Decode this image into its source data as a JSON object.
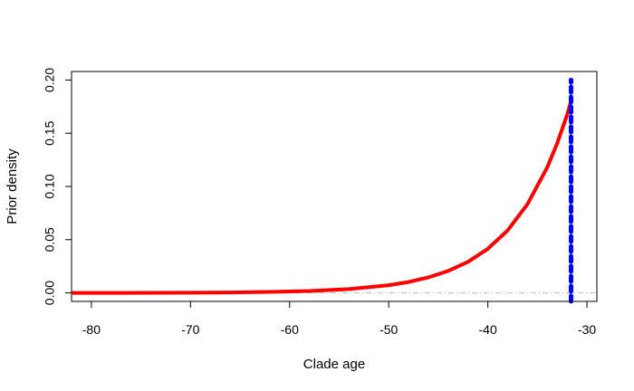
{
  "chart_data": {
    "type": "line",
    "title": "",
    "xlabel": "Clade age",
    "ylabel": "Prior density",
    "xlim": [
      -82,
      -29
    ],
    "ylim": [
      -0.008,
      0.208
    ],
    "x_ticks": [
      -80,
      -70,
      -60,
      -50,
      -40,
      -30
    ],
    "x_tick_labels": [
      "-80",
      "-70",
      "-60",
      "-50",
      "-40",
      "-30"
    ],
    "y_ticks": [
      0.0,
      0.05,
      0.1,
      0.15,
      0.2
    ],
    "y_tick_labels": [
      "0.00",
      "0.05",
      "0.10",
      "0.15",
      "0.20"
    ],
    "grid": false,
    "series": [
      {
        "style": "solid",
        "color": "#ff0000",
        "x": [
          -82,
          -78,
          -74,
          -70,
          -66,
          -62,
          -58,
          -54,
          -50,
          -48,
          -46,
          -44,
          -42,
          -40,
          -38,
          -36,
          -34,
          -33,
          -32,
          -31.6
        ],
        "y": [
          0.0,
          0.0,
          0.0001,
          0.0002,
          0.0004,
          0.0009,
          0.0018,
          0.0036,
          0.0072,
          0.0102,
          0.0145,
          0.0206,
          0.0292,
          0.0414,
          0.0587,
          0.0833,
          0.1181,
          0.1406,
          0.1674,
          0.18
        ]
      },
      {
        "style": "dotted",
        "color": "#0000ff",
        "x": [
          -31.6,
          -31.6
        ],
        "y": [
          -0.008,
          0.2
        ]
      }
    ],
    "reference_lines": [
      {
        "orientation": "horizontal",
        "y": 0,
        "style": "dash-dot",
        "color": "#bbbbbb"
      }
    ]
  }
}
